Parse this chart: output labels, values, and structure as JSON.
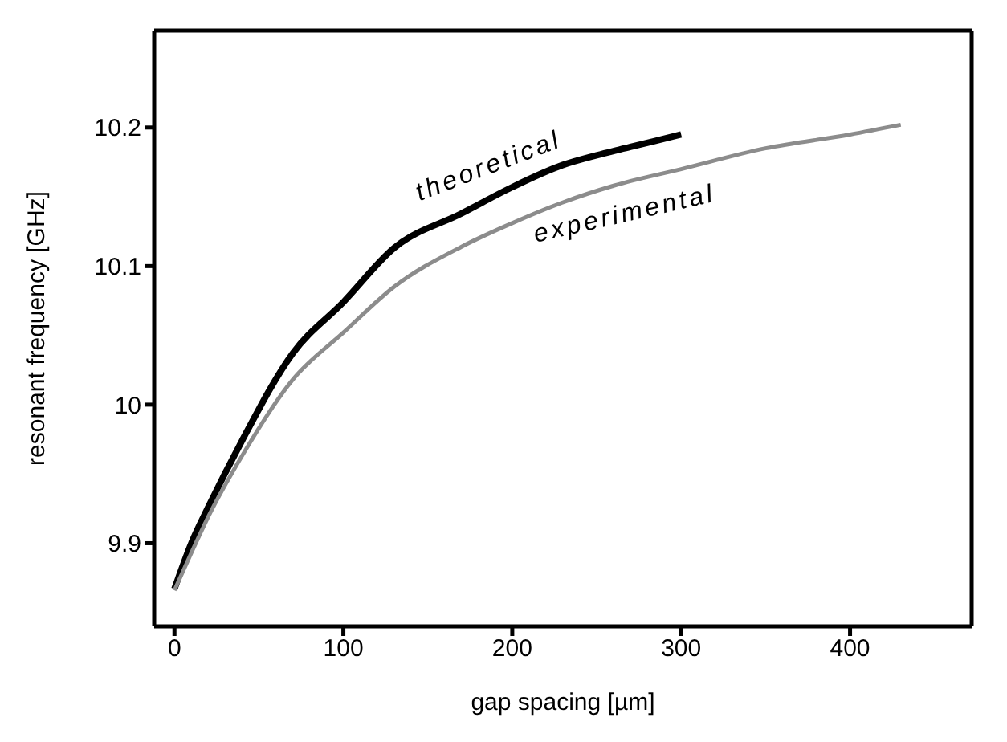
{
  "chart_data": {
    "type": "line",
    "xlabel": "gap spacing [µm]",
    "ylabel": "resonant frequency [GHz]",
    "xlim": [
      -12,
      472
    ],
    "xticks": [
      0,
      100,
      200,
      300,
      400
    ],
    "ylim": [
      9.84,
      10.27
    ],
    "yticks": [
      9.9,
      10,
      10.1,
      10.2
    ],
    "legend": false,
    "marker": "none",
    "series": [
      {
        "color": "#000000",
        "x": [
          0,
          10,
          20,
          40,
          70,
          100,
          130,
          170,
          200,
          230,
          250,
          270,
          300
        ],
        "values": [
          9.867,
          9.9,
          9.926,
          9.974,
          10.037,
          10.074,
          10.113,
          10.138,
          10.157,
          10.173,
          10.18,
          10.186,
          10.195
        ]
      },
      {
        "color": "#8c8c8c",
        "x": [
          0,
          10,
          20,
          40,
          70,
          100,
          130,
          170,
          200,
          230,
          260,
          300,
          350,
          400,
          430
        ],
        "values": [
          9.866,
          9.893,
          9.919,
          9.963,
          10.018,
          10.052,
          10.085,
          10.114,
          10.131,
          10.146,
          10.158,
          10.17,
          10.185,
          10.195,
          10.202
        ]
      }
    ],
    "annotations": [
      "theoretical",
      "experimental"
    ]
  }
}
